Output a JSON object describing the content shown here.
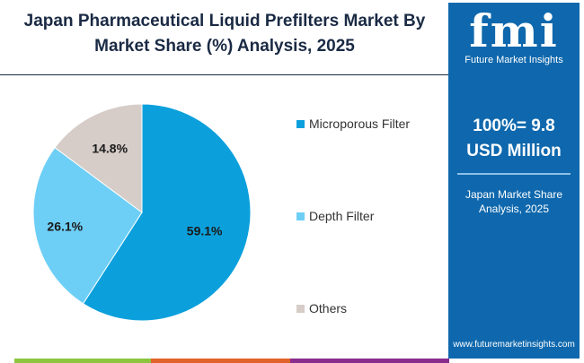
{
  "chart_data": {
    "type": "pie",
    "title": "Japan Pharmaceutical Liquid Prefilters Market By Market Share (%) Analysis, 2025",
    "slices": [
      {
        "label": "Microporous Filter",
        "value": 59.1,
        "display": "59.1%",
        "color": "#0ba0dc"
      },
      {
        "label": "Depth Filter",
        "value": 26.1,
        "display": "26.1%",
        "color": "#6ecff6"
      },
      {
        "label": "Others",
        "value": 14.8,
        "display": "14.8%",
        "color": "#d6ccc8"
      }
    ],
    "legend_position": "right"
  },
  "panel": {
    "logo": "fmi",
    "logo_text": "Future Market Insights",
    "total_line1": "100%= 9.8",
    "total_line2": "USD Million",
    "subtitle": "Japan Market Share Analysis, 2025",
    "url": "www.futuremarketinsights.com",
    "color": "#0f68ad"
  }
}
